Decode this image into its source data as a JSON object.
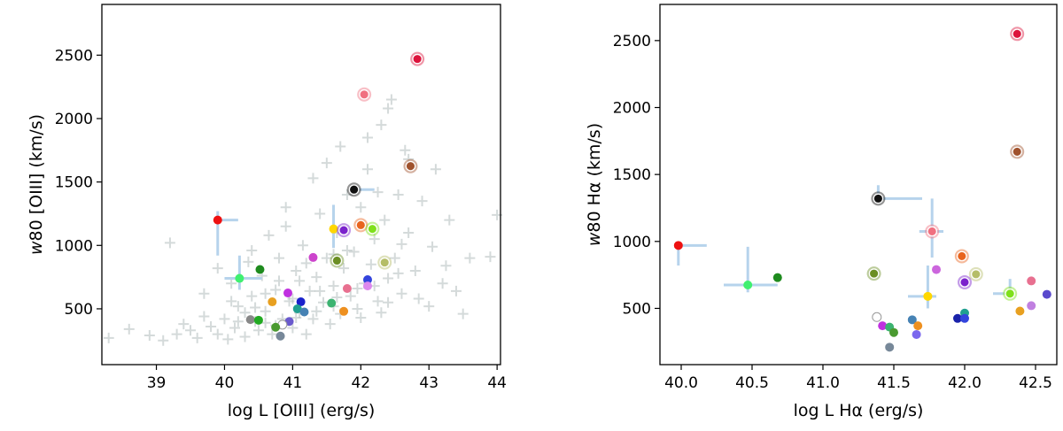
{
  "chart_data": [
    {
      "type": "scatter",
      "title": "",
      "xlabel": "log L [OIII] (erg/s)",
      "ylabel": "w80 [OIII] (km/s)",
      "ylabel_prefix": "w",
      "ylabel_rest": "80 [OIII] (km/s)",
      "xlim": [
        38.2,
        44.05
      ],
      "ylim": [
        60,
        2900
      ],
      "xticks": [
        39,
        40,
        41,
        42,
        43,
        44
      ],
      "xtick_labels": [
        "39",
        "40",
        "41",
        "42",
        "43",
        "44"
      ],
      "yticks": [
        500,
        1000,
        1500,
        2000,
        2500
      ],
      "ytick_labels": [
        "500",
        "1000",
        "1500",
        "2000",
        "2500"
      ],
      "grid": false,
      "background_series": {
        "name": "comparison sample",
        "marker": "plus",
        "color": "#a9b5b5",
        "points": [
          [
            38.3,
            270
          ],
          [
            38.6,
            340
          ],
          [
            38.9,
            290
          ],
          [
            39.1,
            250
          ],
          [
            39.2,
            1020
          ],
          [
            39.3,
            300
          ],
          [
            39.5,
            330
          ],
          [
            39.6,
            270
          ],
          [
            39.7,
            620
          ],
          [
            39.8,
            360
          ],
          [
            39.9,
            300
          ],
          [
            40.0,
            420
          ],
          [
            40.05,
            260
          ],
          [
            40.1,
            700
          ],
          [
            40.15,
            350
          ],
          [
            40.2,
            520
          ],
          [
            40.3,
            280
          ],
          [
            40.35,
            870
          ],
          [
            40.4,
            600
          ],
          [
            40.45,
            400
          ],
          [
            40.5,
            330
          ],
          [
            40.55,
            760
          ],
          [
            40.6,
            480
          ],
          [
            40.65,
            1080
          ],
          [
            40.7,
            300
          ],
          [
            40.75,
            650
          ],
          [
            40.8,
            900
          ],
          [
            40.85,
            420
          ],
          [
            40.9,
            1150
          ],
          [
            40.95,
            560
          ],
          [
            41.0,
            350
          ],
          [
            41.05,
            800
          ],
          [
            41.1,
            470
          ],
          [
            41.15,
            1000
          ],
          [
            41.2,
            300
          ],
          [
            41.25,
            640
          ],
          [
            41.3,
            420
          ],
          [
            41.35,
            750
          ],
          [
            41.4,
            1250
          ],
          [
            41.45,
            550
          ],
          [
            41.5,
            900
          ],
          [
            41.55,
            380
          ],
          [
            41.6,
            680
          ],
          [
            41.65,
            1100
          ],
          [
            41.7,
            460
          ],
          [
            41.75,
            820
          ],
          [
            41.8,
            1400
          ],
          [
            41.85,
            600
          ],
          [
            41.9,
            950
          ],
          [
            41.95,
            500
          ],
          [
            42.0,
            1300
          ],
          [
            42.05,
            700
          ],
          [
            42.1,
            1600
          ],
          [
            42.15,
            850
          ],
          [
            42.2,
            1050
          ],
          [
            42.25,
            560
          ],
          [
            42.3,
            1950
          ],
          [
            42.35,
            1200
          ],
          [
            42.4,
            740
          ],
          [
            42.45,
            2150
          ],
          [
            42.5,
            900
          ],
          [
            42.55,
            1400
          ],
          [
            42.6,
            620
          ],
          [
            42.65,
            1750
          ],
          [
            42.7,
            1100
          ],
          [
            42.8,
            800
          ],
          [
            42.9,
            1350
          ],
          [
            43.0,
            520
          ],
          [
            43.1,
            1600
          ],
          [
            43.2,
            700
          ],
          [
            43.3,
            1200
          ],
          [
            43.5,
            460
          ],
          [
            43.6,
            900
          ],
          [
            43.9,
            910
          ],
          [
            44.0,
            1240
          ],
          [
            39.9,
            820
          ],
          [
            40.3,
            470
          ],
          [
            40.6,
            390
          ],
          [
            40.8,
            720
          ],
          [
            41.0,
            580
          ],
          [
            41.2,
            860
          ],
          [
            41.4,
            640
          ],
          [
            41.6,
            520
          ],
          [
            41.8,
            960
          ],
          [
            42.0,
            430
          ],
          [
            42.2,
            680
          ],
          [
            42.4,
            550
          ],
          [
            42.6,
            1010
          ],
          [
            41.3,
            1530
          ],
          [
            41.7,
            1780
          ],
          [
            42.1,
            1850
          ],
          [
            42.4,
            2080
          ],
          [
            40.9,
            1300
          ],
          [
            41.5,
            1650
          ],
          [
            40.4,
            960
          ],
          [
            40.1,
            560
          ],
          [
            39.7,
            440
          ],
          [
            39.4,
            380
          ],
          [
            40.6,
            620
          ],
          [
            41.1,
            720
          ],
          [
            41.6,
            930
          ],
          [
            42.25,
            1420
          ],
          [
            42.7,
            1680
          ],
          [
            43.05,
            990
          ],
          [
            43.4,
            640
          ],
          [
            40.2,
            400
          ],
          [
            40.45,
            510
          ],
          [
            40.75,
            370
          ],
          [
            41.05,
            430
          ],
          [
            41.35,
            480
          ],
          [
            41.65,
            590
          ],
          [
            41.95,
            660
          ],
          [
            42.3,
            470
          ],
          [
            42.55,
            780
          ],
          [
            42.85,
            580
          ],
          [
            43.25,
            840
          ]
        ]
      },
      "series": [
        {
          "name": "crimson",
          "x": 42.83,
          "y": 2470,
          "color": "#dc143c",
          "size": "large"
        },
        {
          "name": "pink",
          "x": 42.05,
          "y": 2190,
          "color": "#f07080",
          "size": "large"
        },
        {
          "name": "sienna",
          "x": 42.73,
          "y": 1625,
          "color": "#a0522d",
          "size": "large"
        },
        {
          "name": "black",
          "x": 41.9,
          "y": 1440,
          "color": "#111111",
          "size": "large",
          "err_x": [
            41.9,
            42.2
          ]
        },
        {
          "name": "red",
          "x": 39.9,
          "y": 1200,
          "color": "#ee1111",
          "size": "small",
          "err_x": [
            39.9,
            40.2
          ],
          "err_y": [
            920,
            1270
          ]
        },
        {
          "name": "orange",
          "x": 42.0,
          "y": 1160,
          "color": "#e8641e",
          "size": "large"
        },
        {
          "name": "lime",
          "x": 42.17,
          "y": 1130,
          "color": "#7fe01c",
          "size": "large"
        },
        {
          "name": "gold",
          "x": 41.6,
          "y": 1130,
          "color": "#ffd700",
          "size": "small",
          "err_y": [
            980,
            1320
          ]
        },
        {
          "name": "darkviolet",
          "x": 41.75,
          "y": 1120,
          "color": "#7b22cc",
          "size": "large"
        },
        {
          "name": "olive",
          "x": 41.65,
          "y": 880,
          "color": "#6b8e23",
          "size": "large"
        },
        {
          "name": "khaki",
          "x": 42.35,
          "y": 865,
          "color": "#b5bd68",
          "size": "large"
        },
        {
          "name": "green",
          "x": 40.52,
          "y": 810,
          "color": "#1e8b1e",
          "size": "small"
        },
        {
          "name": "magenta",
          "x": 41.3,
          "y": 905,
          "color": "#cc44cc",
          "size": "small"
        },
        {
          "name": "springgreen",
          "x": 40.22,
          "y": 740,
          "color": "#40f070",
          "size": "small",
          "err_x": [
            40.0,
            40.55
          ],
          "err_y": [
            650,
            920
          ]
        },
        {
          "name": "blue",
          "x": 42.1,
          "y": 730,
          "color": "#3344dd",
          "size": "small"
        },
        {
          "name": "violet",
          "x": 42.1,
          "y": 680,
          "color": "#dd88ee",
          "size": "small"
        },
        {
          "name": "salmonpink",
          "x": 41.8,
          "y": 660,
          "color": "#e87090",
          "size": "small"
        },
        {
          "name": "purple",
          "x": 40.93,
          "y": 625,
          "color": "#c030e0",
          "size": "small"
        },
        {
          "name": "navy",
          "x": 41.12,
          "y": 555,
          "color": "#1a22cc",
          "size": "small"
        },
        {
          "name": "amber",
          "x": 40.7,
          "y": 555,
          "color": "#e8a020",
          "size": "small"
        },
        {
          "name": "seagreen",
          "x": 41.57,
          "y": 545,
          "color": "#3cb371",
          "size": "small"
        },
        {
          "name": "teal",
          "x": 41.07,
          "y": 500,
          "color": "#20a090",
          "size": "small"
        },
        {
          "name": "steelblue",
          "x": 41.17,
          "y": 475,
          "color": "#4682b4",
          "size": "small"
        },
        {
          "name": "orange2",
          "x": 41.75,
          "y": 480,
          "color": "#ee9020",
          "size": "small"
        },
        {
          "name": "slateblue",
          "x": 40.95,
          "y": 400,
          "color": "#6a5acd",
          "size": "small"
        },
        {
          "name": "grey",
          "x": 40.38,
          "y": 415,
          "color": "#888888",
          "size": "small"
        },
        {
          "name": "green2",
          "x": 40.5,
          "y": 410,
          "color": "#22aa22",
          "size": "small"
        },
        {
          "name": "white",
          "x": 40.85,
          "y": 375,
          "color": "#ffffff",
          "size": "small"
        },
        {
          "name": "darkgreen",
          "x": 40.75,
          "y": 355,
          "color": "#4a9a30",
          "size": "small"
        },
        {
          "name": "slategrey",
          "x": 40.82,
          "y": 285,
          "color": "#778899",
          "size": "small"
        }
      ]
    },
    {
      "type": "scatter",
      "title": "",
      "xlabel": "log L Hα (erg/s)",
      "ylabel": "w80 Hα (km/s)",
      "ylabel_prefix": "w",
      "ylabel_rest": "80 Hα (km/s)",
      "xlim": [
        39.85,
        42.65
      ],
      "ylim": [
        80,
        2770
      ],
      "xticks": [
        40.0,
        40.5,
        41.0,
        41.5,
        42.0,
        42.5
      ],
      "xtick_labels": [
        "40.0",
        "40.5",
        "41.0",
        "41.5",
        "42.0",
        "42.5"
      ],
      "yticks": [
        500,
        1000,
        1500,
        2000,
        2500
      ],
      "ytick_labels": [
        "500",
        "1000",
        "1500",
        "2000",
        "2500"
      ],
      "grid": false,
      "series": [
        {
          "name": "crimson",
          "x": 42.37,
          "y": 2550,
          "color": "#dc143c",
          "size": "large"
        },
        {
          "name": "sienna",
          "x": 42.37,
          "y": 1670,
          "color": "#a0522d",
          "size": "large"
        },
        {
          "name": "black",
          "x": 41.39,
          "y": 1320,
          "color": "#111111",
          "size": "large",
          "err_x": [
            41.39,
            41.7
          ],
          "err_y": [
            1320,
            1420
          ]
        },
        {
          "name": "pink",
          "x": 41.77,
          "y": 1075,
          "color": "#f07080",
          "size": "large",
          "err_x": [
            41.68,
            41.85
          ],
          "err_y": [
            880,
            1320
          ]
        },
        {
          "name": "red",
          "x": 39.98,
          "y": 970,
          "color": "#ee1111",
          "size": "small",
          "err_x": [
            39.98,
            40.18
          ],
          "err_y": [
            820,
            980
          ]
        },
        {
          "name": "orange",
          "x": 41.98,
          "y": 890,
          "color": "#e8641e",
          "size": "large"
        },
        {
          "name": "violet",
          "x": 41.8,
          "y": 790,
          "color": "#cc66dd",
          "size": "small"
        },
        {
          "name": "olive",
          "x": 41.36,
          "y": 760,
          "color": "#6b8e23",
          "size": "large"
        },
        {
          "name": "khaki",
          "x": 42.08,
          "y": 755,
          "color": "#b5bd68",
          "size": "large"
        },
        {
          "name": "green",
          "x": 40.68,
          "y": 730,
          "color": "#1e8b1e",
          "size": "small"
        },
        {
          "name": "darkviolet",
          "x": 42.0,
          "y": 695,
          "color": "#7b22cc",
          "size": "large"
        },
        {
          "name": "hotpink",
          "x": 42.47,
          "y": 705,
          "color": "#e87090",
          "size": "small"
        },
        {
          "name": "springgreen",
          "x": 40.47,
          "y": 675,
          "color": "#40f070",
          "size": "small",
          "err_x": [
            40.3,
            40.68
          ],
          "err_y": [
            620,
            960
          ]
        },
        {
          "name": "lime",
          "x": 42.32,
          "y": 610,
          "color": "#7fe01c",
          "size": "large",
          "err_x": [
            42.2,
            42.35
          ],
          "err_y": [
            580,
            720
          ]
        },
        {
          "name": "gold",
          "x": 41.74,
          "y": 590,
          "color": "#ffd700",
          "size": "small",
          "err_x": [
            41.6,
            41.8
          ],
          "err_y": [
            500,
            820
          ]
        },
        {
          "name": "slateblue",
          "x": 42.58,
          "y": 605,
          "color": "#5a4acd",
          "size": "small"
        },
        {
          "name": "lavender",
          "x": 42.47,
          "y": 520,
          "color": "#c080e0",
          "size": "small"
        },
        {
          "name": "amber",
          "x": 42.39,
          "y": 480,
          "color": "#e8a020",
          "size": "small"
        },
        {
          "name": "teal",
          "x": 42.0,
          "y": 465,
          "color": "#20a090",
          "size": "small"
        },
        {
          "name": "white",
          "x": 41.38,
          "y": 435,
          "color": "#ffffff",
          "size": "small"
        },
        {
          "name": "navy",
          "x": 41.95,
          "y": 425,
          "color": "#1a22aa",
          "size": "small"
        },
        {
          "name": "blue",
          "x": 42.0,
          "y": 425,
          "color": "#3344dd",
          "size": "small"
        },
        {
          "name": "steelblue",
          "x": 41.63,
          "y": 415,
          "color": "#4682b4",
          "size": "small"
        },
        {
          "name": "purple",
          "x": 41.42,
          "y": 370,
          "color": "#c030e0",
          "size": "small"
        },
        {
          "name": "orange2",
          "x": 41.67,
          "y": 370,
          "color": "#ee9020",
          "size": "small"
        },
        {
          "name": "seagreen",
          "x": 41.47,
          "y": 360,
          "color": "#3cb371",
          "size": "small"
        },
        {
          "name": "darkgreen",
          "x": 41.5,
          "y": 320,
          "color": "#4a9a30",
          "size": "small"
        },
        {
          "name": "mediumslate",
          "x": 41.66,
          "y": 305,
          "color": "#7b68ee",
          "size": "small"
        },
        {
          "name": "slategrey",
          "x": 41.47,
          "y": 210,
          "color": "#778899",
          "size": "small"
        }
      ]
    }
  ]
}
